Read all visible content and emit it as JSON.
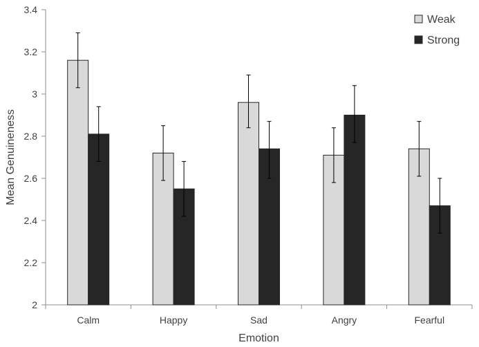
{
  "chart_data": {
    "type": "bar",
    "title": "",
    "xlabel": "Emotion",
    "ylabel": "Mean Genuineness",
    "ylim": [
      2,
      3.4
    ],
    "yticks": [
      2,
      2.2,
      2.4,
      2.6,
      2.8,
      3,
      3.2,
      3.4
    ],
    "ytick_labels": [
      "2",
      "2.2",
      "2.4",
      "2.6",
      "2.8",
      "3",
      "3.2",
      "3.4"
    ],
    "grid": false,
    "legend_position": "top-right",
    "categories": [
      "Calm",
      "Happy",
      "Sad",
      "Angry",
      "Fearful"
    ],
    "series": [
      {
        "name": "Weak",
        "color": "#d9d9d9",
        "values": [
          3.16,
          2.72,
          2.96,
          2.71,
          2.74
        ],
        "error_low": [
          3.03,
          2.59,
          2.84,
          2.58,
          2.61
        ],
        "error_high": [
          3.29,
          2.85,
          3.09,
          2.84,
          2.87
        ]
      },
      {
        "name": "Strong",
        "color": "#262626",
        "values": [
          2.81,
          2.55,
          2.74,
          2.9,
          2.47
        ],
        "error_low": [
          2.68,
          2.42,
          2.6,
          2.77,
          2.34
        ],
        "error_high": [
          2.94,
          2.68,
          2.87,
          3.04,
          2.6
        ]
      }
    ]
  }
}
